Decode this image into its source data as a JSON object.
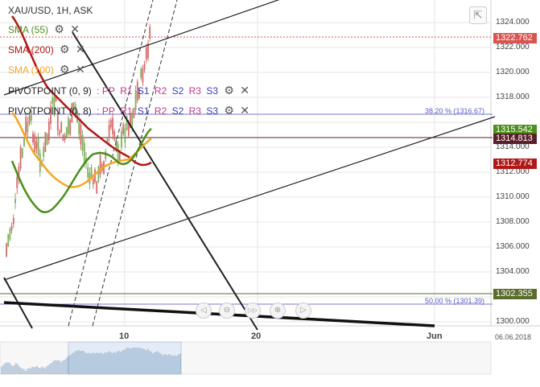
{
  "header": {
    "title": "XAU/USD, 1H, ASK"
  },
  "indicators": [
    {
      "label": "SMA (55)",
      "color": "#4b8f1c"
    },
    {
      "label": "SMA (200)",
      "color": "#b01818"
    },
    {
      "label": "SMA (100)",
      "color": "#f5a623"
    }
  ],
  "pivots": [
    {
      "label": "PIVOTPOINT (0, 9)",
      "parts": [
        ": PP",
        "R1",
        "S1",
        "R2",
        "S2",
        "R3",
        "S3"
      ],
      "colors": [
        "#c0388a",
        "#c0388a",
        "#3a3ab8",
        "#c0388a",
        "#3a3ab8",
        "#c0388a",
        "#3a3ab8"
      ]
    },
    {
      "label": "PIVOTPOINT (0, 8)",
      "parts": [
        ": PP",
        "R1",
        "S1",
        "R2",
        "S2",
        "R3",
        "S3"
      ],
      "colors": [
        "#c0388a",
        "#c0388a",
        "#3a3ab8",
        "#c0388a",
        "#3a3ab8",
        "#c0388a",
        "#3a3ab8"
      ]
    }
  ],
  "price_axis": {
    "ticks": [
      "1324.000",
      "1322.000",
      "1320.000",
      "1318.000",
      "1314.000",
      "1312.000",
      "1310.000",
      "1308.000",
      "1306.000",
      "1304.000",
      "1300.000"
    ],
    "min": 1299,
    "max": 1325
  },
  "price_tags": [
    {
      "value": "1322.762",
      "bg": "#d9534f"
    },
    {
      "value": "1315.542",
      "bg": "#4b8f1c"
    },
    {
      "value": "1314.813",
      "bg": "#5a1f2a"
    },
    {
      "value": "1312.774",
      "bg": "#b01818"
    },
    {
      "value": "1302.355",
      "bg": "#5a6b2a"
    }
  ],
  "fib_levels": [
    {
      "label": "38.20 % (1316.67)",
      "price": 1316.67
    },
    {
      "label": "50.00 % (1301.39)",
      "price": 1301.39
    }
  ],
  "time_axis": {
    "labels": [
      "10",
      "20",
      "Jun"
    ],
    "date_label": "06.06.2018"
  },
  "nav_buttons": [
    "◁",
    "⊖",
    "▷▷",
    "⊕",
    "▷"
  ]
}
